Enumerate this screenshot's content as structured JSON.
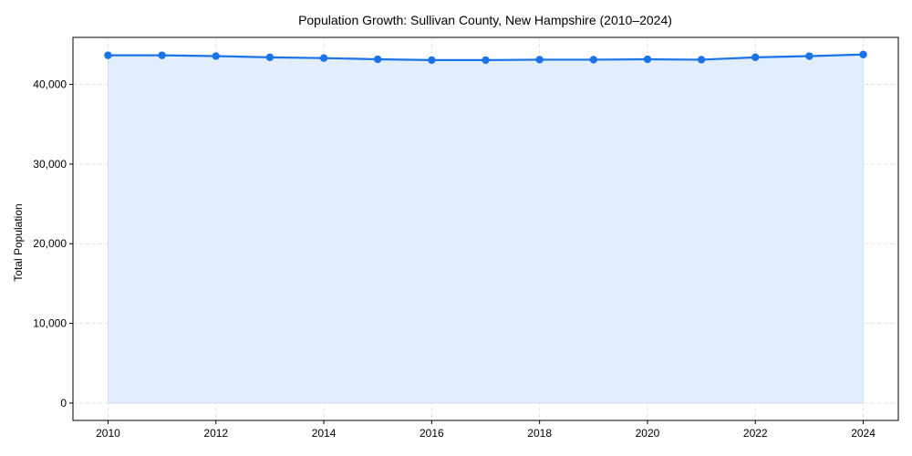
{
  "chart_data": {
    "type": "area",
    "title": "Population Growth: Sullivan County, New Hampshire (2010–2024)",
    "xlabel": "",
    "ylabel": "Total Population",
    "x": [
      2010,
      2011,
      2012,
      2013,
      2014,
      2015,
      2016,
      2017,
      2018,
      2019,
      2020,
      2021,
      2022,
      2023,
      2024
    ],
    "series": [
      {
        "name": "Total Population",
        "values": [
          43650,
          43650,
          43550,
          43400,
          43300,
          43150,
          43050,
          43050,
          43100,
          43100,
          43150,
          43100,
          43400,
          43550,
          43750
        ],
        "color": "#1a73e8",
        "fill_color": "#e3eefd"
      }
    ],
    "xticks": [
      2010,
      2012,
      2014,
      2016,
      2018,
      2020,
      2022,
      2024
    ],
    "yticks": [
      0,
      10000,
      20000,
      30000,
      40000
    ],
    "ytick_labels": [
      "0",
      "10,000",
      "20,000",
      "30,000",
      "40,000"
    ],
    "xlim": [
      2009.35,
      2024.65
    ],
    "ylim": [
      -2180,
      45900
    ],
    "grid": true,
    "legend": null
  }
}
